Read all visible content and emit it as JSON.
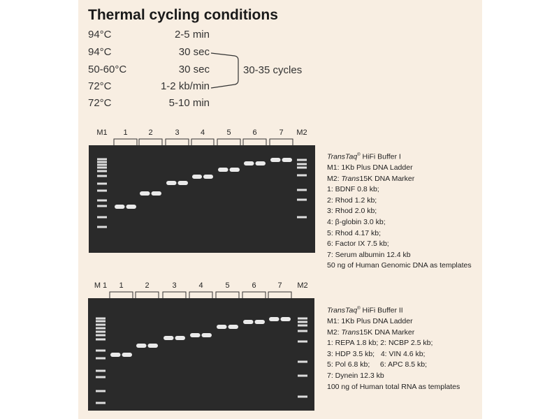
{
  "title": "Thermal cycling conditions",
  "conditions": [
    {
      "temp": "94°C",
      "time": "2-5 min"
    },
    {
      "temp": "94°C",
      "time": "30 sec"
    },
    {
      "temp": "50-60°C",
      "time": "30 sec"
    },
    {
      "temp": "72°C",
      "time": "1-2 kb/min"
    },
    {
      "temp": "72°C",
      "time": "5-10 min"
    }
  ],
  "cycles_label": "30-35 cycles",
  "gel1": {
    "lane_labels": [
      "M1",
      "1",
      "2",
      "3",
      "4",
      "5",
      "6",
      "7",
      "M2"
    ],
    "legend": {
      "brand": "TransTaq",
      "reg": "®",
      "buffer": " HiFi Buffer I",
      "lines": [
        "M1: 1Kb Plus DNA Ladder"
      ],
      "m2_prefix": "M2: ",
      "m2_italic": "Trans",
      "m2_rest": "15K DNA Marker",
      "samples": [
        "1: BDNF 0.8 kb;",
        "2: Rhod 1.2 kb;",
        "3: Rhod 2.0 kb;",
        "4: β-globin 3.0 kb;",
        "5: Rhod 4.17 kb;",
        "6: Factor IX 7.5 kb;",
        "7: Serum albumin 12.4 kb",
        "50 ng of Human Genomic DNA as templates"
      ]
    }
  },
  "gel2": {
    "lane_labels": [
      "M 1",
      "1",
      "2",
      "3",
      "4",
      "5",
      "6",
      "7",
      "M2"
    ],
    "legend": {
      "brand": "TransTaq",
      "reg": "®",
      "buffer": " HiFi Buffer II",
      "lines": [
        "M1: 1Kb Plus DNA Ladder"
      ],
      "m2_prefix": "M2: ",
      "m2_italic": "Trans",
      "m2_rest": "15K DNA Marker",
      "samples": [
        "1: REPA 1.8 kb; 2: NCBP 2.5 kb;",
        "3: HDP 3.5 kb;   4: VIN 4.6 kb;",
        "5: Pol 6.8 kb;     6: APC 8.5 kb;",
        "7: Dynein 12.3 kb",
        "100 ng of Human total RNA as templates"
      ]
    }
  },
  "colors": {
    "panel": "#f8eee2",
    "gel": "#2a2a2a",
    "band": "#f4f4f4"
  }
}
